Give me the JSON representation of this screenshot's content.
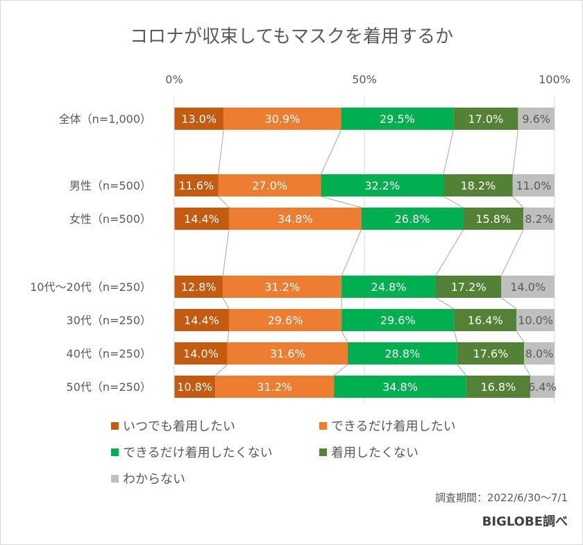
{
  "chart_data": {
    "type": "bar",
    "orientation": "horizontal-stacked-100",
    "title": "コロナが収束してもマスクを着用するか",
    "xlim": [
      0,
      100
    ],
    "x_ticks": [
      "0%",
      "50%",
      "100%"
    ],
    "x_tick_values": [
      0,
      50,
      100
    ],
    "grid": true,
    "legend_position": "bottom",
    "categories": [
      "全体（n=1,000）",
      "男性（n=500）",
      "女性（n=500）",
      "10代～20代（n=250）",
      "30代（n=250）",
      "40代（n=250）",
      "50代（n=250）"
    ],
    "category_groups": [
      0,
      1,
      1,
      2,
      2,
      2,
      2
    ],
    "series": [
      {
        "name": "いつでも着用したい",
        "color": "#C55A11",
        "label_color": "#ffffff",
        "values": [
          13.0,
          11.6,
          14.4,
          12.8,
          14.4,
          14.0,
          10.8
        ],
        "labels": [
          "13.0%",
          "11.6%",
          "14.4%",
          "12.8%",
          "14.4%",
          "14.0%",
          "10.8%"
        ]
      },
      {
        "name": "できるだけ着用したい",
        "color": "#ED7D31",
        "label_color": "#ffffff",
        "values": [
          30.9,
          27.0,
          34.8,
          31.2,
          29.6,
          31.6,
          31.2
        ],
        "labels": [
          "30.9%",
          "27.0%",
          "34.8%",
          "31.2%",
          "29.6%",
          "31.6%",
          "31.2%"
        ]
      },
      {
        "name": "できるだけ着用したくない",
        "color": "#00B050",
        "label_color": "#ffffff",
        "values": [
          29.5,
          32.2,
          26.8,
          24.8,
          29.6,
          28.8,
          34.8
        ],
        "labels": [
          "29.5%",
          "32.2%",
          "26.8%",
          "24.8%",
          "29.6%",
          "28.8%",
          "34.8%"
        ]
      },
      {
        "name": "着用したくない",
        "color": "#538135",
        "label_color": "#ffffff",
        "values": [
          17.0,
          18.2,
          15.8,
          17.2,
          16.4,
          17.6,
          16.8
        ],
        "labels": [
          "17.0%",
          "18.2%",
          "15.8%",
          "17.2%",
          "16.4%",
          "17.6%",
          "16.8%"
        ]
      },
      {
        "name": "わからない",
        "color": "#BFBFBF",
        "label_color": "#595959",
        "values": [
          9.6,
          11.0,
          8.2,
          14.0,
          10.0,
          8.0,
          6.4
        ],
        "labels": [
          "9.6%",
          "11.0%",
          "8.2%",
          "14.0%",
          "10.0%",
          "8.0%",
          "6.4%"
        ]
      }
    ],
    "series_lines": true
  },
  "footer": {
    "period": "調査期間：2022/6/30～7/1",
    "source": "BIGLOBE調べ"
  }
}
